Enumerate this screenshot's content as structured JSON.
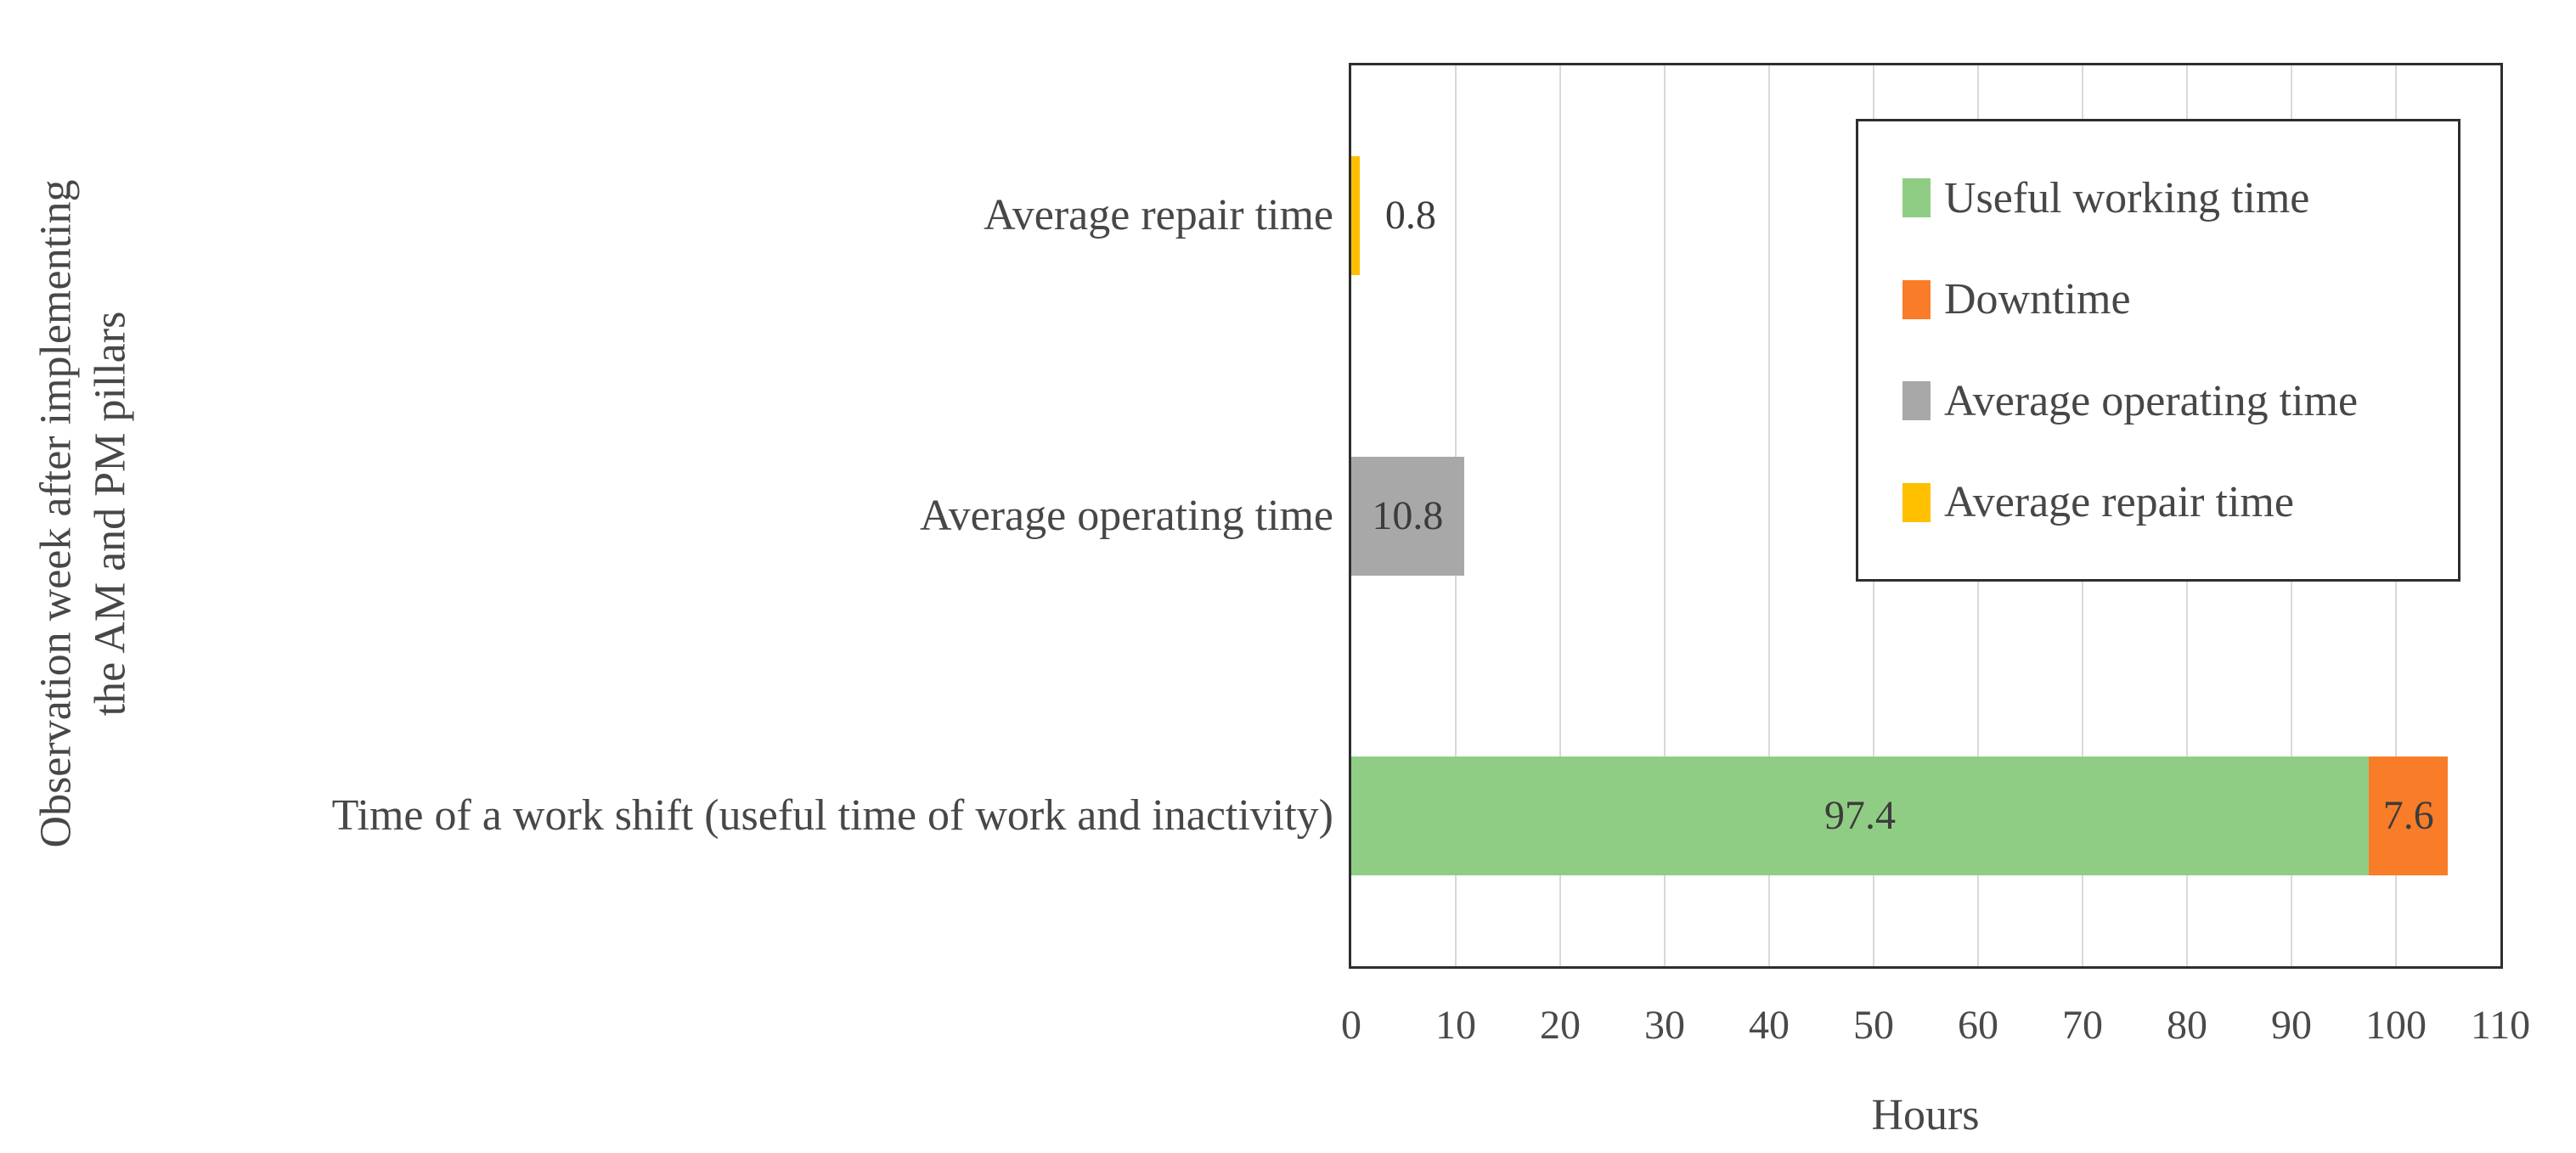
{
  "figure": {
    "background": "#FFFFFF",
    "plot_border_color": "#2E2E2E",
    "gridline_color": "#D9D9D9",
    "axis_text_color": "#474747",
    "value_label_color": "#3C3C3C"
  },
  "chart_data": {
    "type": "bar",
    "orientation": "horizontal",
    "stacked": true,
    "title": "",
    "xlabel": "Hours",
    "ylabel": "Observation week after implementing the AM and PM pillars",
    "ylabel_lines": [
      "Observation week after implementing",
      "the AM and PM pillars"
    ],
    "xlim": [
      0,
      110
    ],
    "x_ticks": [
      0,
      10,
      20,
      30,
      40,
      50,
      60,
      70,
      80,
      90,
      100,
      110
    ],
    "grid": true,
    "legend_position": "top-right-inside",
    "categories": [
      "Average repair time",
      "Average operating time",
      "Time of a work shift (useful time of work and inactivity)"
    ],
    "series": [
      {
        "name": "Useful working time",
        "color": "#90CD84",
        "values": [
          null,
          null,
          97.4
        ]
      },
      {
        "name": "Downtime",
        "color": "#F97D28",
        "values": [
          null,
          null,
          7.6
        ]
      },
      {
        "name": "Average operating time",
        "color": "#A8A8A8",
        "values": [
          null,
          10.8,
          null
        ]
      },
      {
        "name": "Average repair time",
        "color": "#FFC000",
        "values": [
          0.8,
          null,
          null
        ]
      }
    ]
  }
}
